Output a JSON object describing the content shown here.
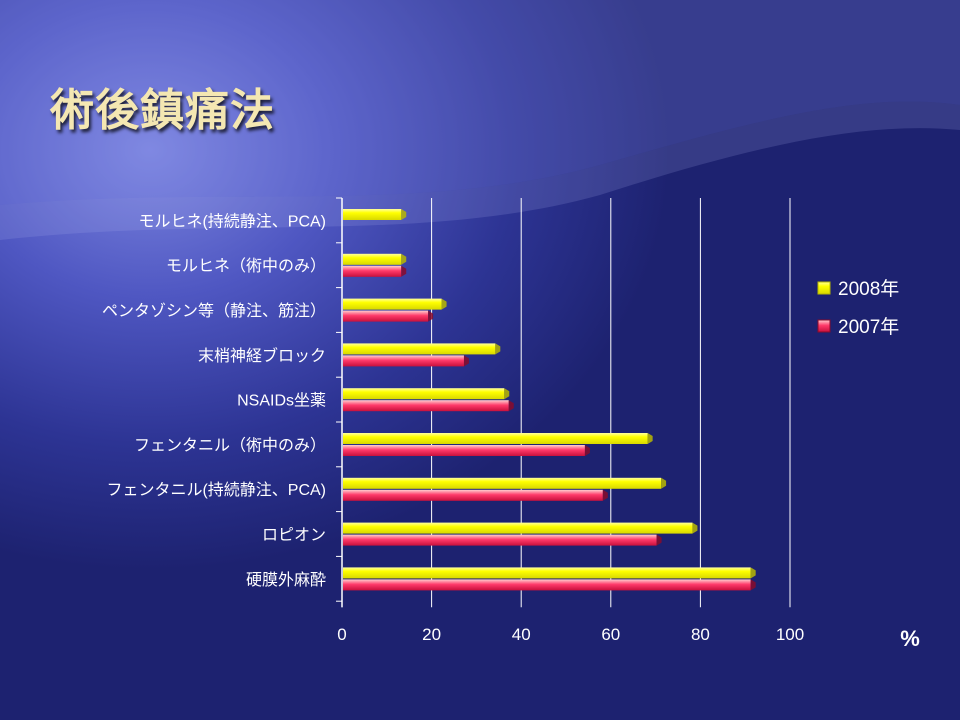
{
  "slide": {
    "title": "術後鎮痛法"
  },
  "chart_data": {
    "type": "bar",
    "orientation": "horizontal",
    "categories": [
      "モルヒネ(持続静注、PCA)",
      "モルヒネ（術中のみ）",
      "ペンタゾシン等（静注、筋注）",
      "末梢神経ブロック",
      "NSAIDs坐薬",
      "フェンタニル（術中のみ）",
      "フェンタニル(持続静注、PCA)",
      "ロピオン",
      "硬膜外麻酔"
    ],
    "series": [
      {
        "name": "2008年",
        "color": "#ffff00",
        "values": [
          13,
          13,
          22,
          34,
          36,
          68,
          71,
          78,
          91
        ]
      },
      {
        "name": "2007年",
        "color": "#ff3366",
        "values": [
          null,
          13,
          19,
          27,
          37,
          54,
          58,
          70,
          91
        ]
      }
    ],
    "xlim": [
      0,
      100
    ],
    "xticks": [
      "0",
      "20",
      "40",
      "60",
      "80",
      "100"
    ],
    "xlabel": "%",
    "grid": "vertical",
    "legend_position": "right"
  }
}
